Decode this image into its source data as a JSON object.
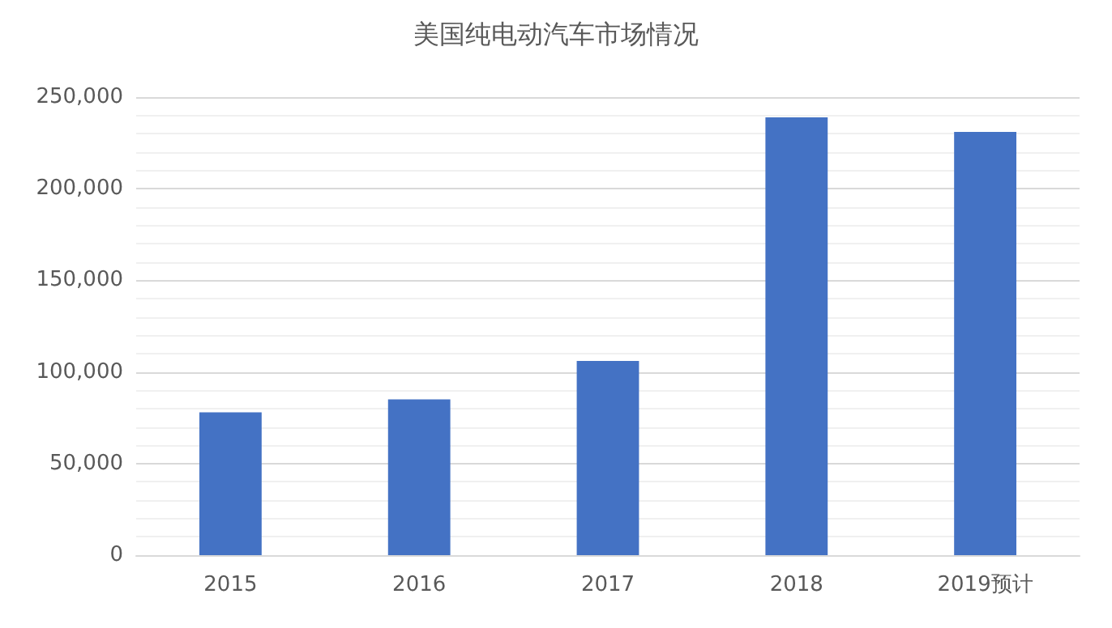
{
  "chart_data": {
    "type": "bar",
    "title": "美国纯电动汽车市场情况",
    "categories": [
      "2015",
      "2016",
      "2017",
      "2018",
      "2019预计"
    ],
    "values": [
      78000,
      85000,
      106000,
      239000,
      231000
    ],
    "color": "#4472c4",
    "ylim": [
      0,
      250000
    ],
    "yticks": [
      0,
      {
        "value": 50000,
        "label": "50,000"
      },
      {
        "value": 100000,
        "label": "100,000"
      },
      {
        "value": 150000,
        "label": "150,000"
      },
      {
        "value": 200000,
        "label": "200,000"
      },
      {
        "value": 250000,
        "label": "250,000"
      }
    ],
    "grid": true
  }
}
